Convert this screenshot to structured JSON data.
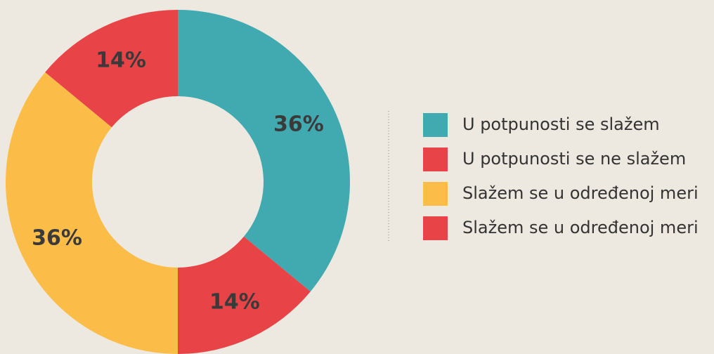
{
  "chart_data": {
    "type": "donut",
    "categories": [
      "U potpunosti se slažem",
      "Slažem se u određenoj meri",
      "Slažem se u određenoj meri",
      "U potpunosti se ne slažem"
    ],
    "values": [
      36,
      14,
      36,
      14
    ],
    "value_labels": [
      "36%",
      "14%",
      "36%",
      "14%"
    ],
    "colors": [
      "#41aab1",
      "#e84347",
      "#fbbd48",
      "#e84347"
    ],
    "legend_order": [
      0,
      3,
      2,
      1
    ],
    "legend": "right"
  }
}
